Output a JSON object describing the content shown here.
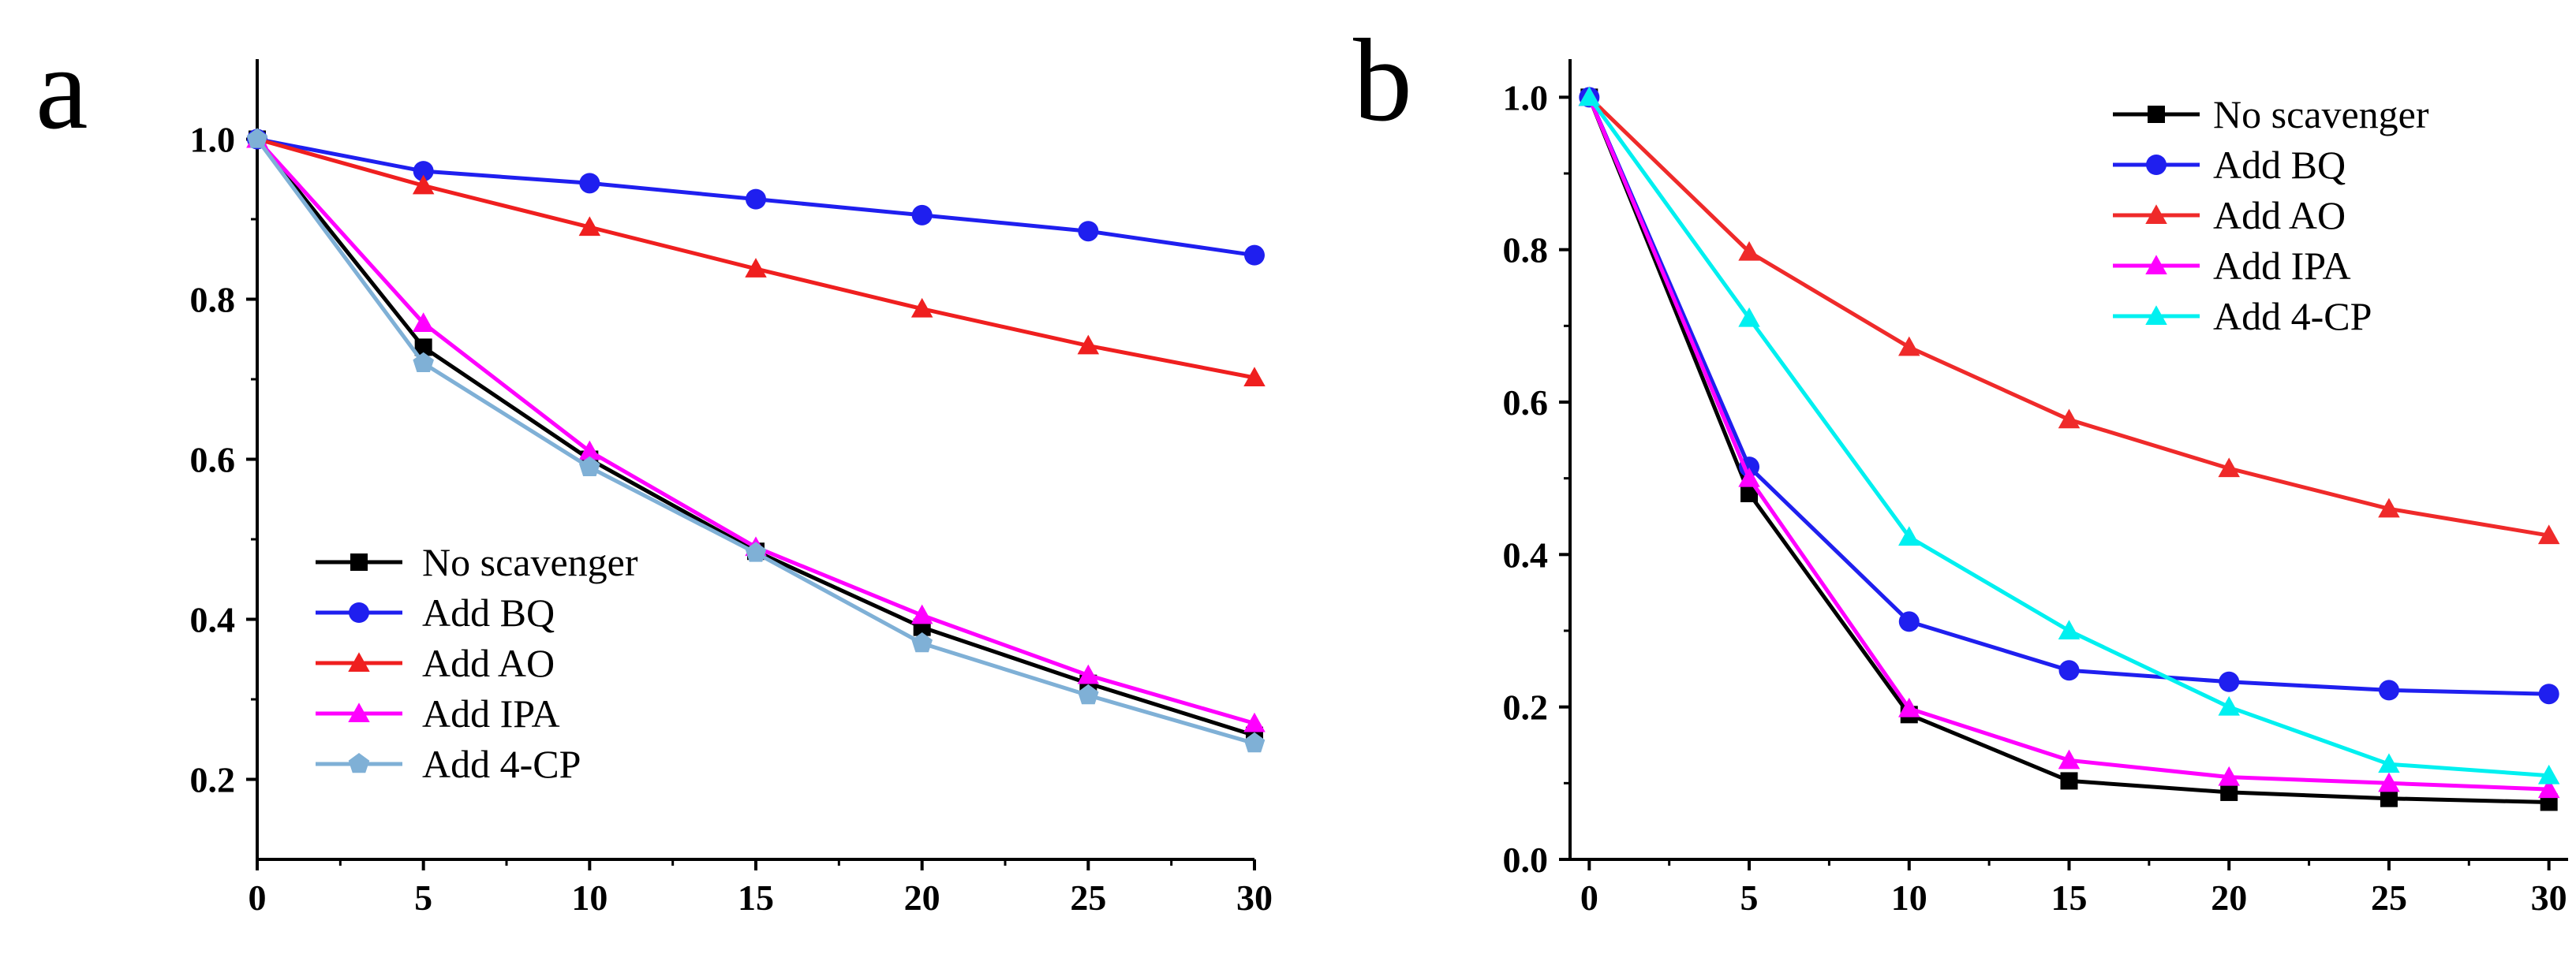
{
  "chart_data": [
    {
      "panel": "a",
      "type": "line",
      "title": "",
      "xlabel": "",
      "ylabel": "",
      "xlim": [
        0,
        30
      ],
      "ylim": [
        0.1,
        1.1
      ],
      "xticks": [
        0,
        5,
        10,
        15,
        20,
        25,
        30
      ],
      "yticks": [
        0.2,
        0.4,
        0.6,
        0.8,
        1.0
      ],
      "xtick_labels": [
        "0",
        "5",
        "10",
        "15",
        "20",
        "25",
        "30"
      ],
      "ytick_labels": [
        "0.2",
        "0.4",
        "0.6",
        "0.8",
        "1.0"
      ],
      "grid": false,
      "legend_position": "bottom-left",
      "x": [
        0,
        5,
        10,
        15,
        20,
        25,
        30
      ],
      "series": [
        {
          "name": "No scavenger",
          "color": "#000000",
          "marker": "square",
          "values": [
            1.0,
            0.74,
            0.6,
            0.485,
            0.39,
            0.32,
            0.255
          ]
        },
        {
          "name": "Add BQ",
          "color": "#1f1fef",
          "marker": "circle",
          "values": [
            1.0,
            0.96,
            0.945,
            0.925,
            0.905,
            0.885,
            0.855
          ]
        },
        {
          "name": "Add AO",
          "color": "#ef1f1f",
          "marker": "triangle",
          "values": [
            1.0,
            0.942,
            0.89,
            0.838,
            0.788,
            0.742,
            0.702
          ]
        },
        {
          "name": "Add IPA",
          "color": "#ff00ff",
          "marker": "triangle",
          "values": [
            1.0,
            0.77,
            0.61,
            0.49,
            0.405,
            0.33,
            0.27
          ]
        },
        {
          "name": "Add 4-CP",
          "color": "#7fb0d6",
          "marker": "pentagon",
          "values": [
            1.0,
            0.72,
            0.59,
            0.483,
            0.37,
            0.305,
            0.245
          ]
        }
      ]
    },
    {
      "panel": "b",
      "type": "line",
      "title": "",
      "xlabel": "",
      "ylabel": "",
      "xlim": [
        -0.6,
        30.6
      ],
      "ylim": [
        0.0,
        1.05
      ],
      "xticks": [
        0,
        5,
        10,
        15,
        20,
        25,
        30
      ],
      "yticks": [
        0.0,
        0.2,
        0.4,
        0.6,
        0.8,
        1.0
      ],
      "xtick_labels": [
        "0",
        "5",
        "10",
        "15",
        "20",
        "25",
        "30"
      ],
      "ytick_labels": [
        "0.0",
        "0.2",
        "0.4",
        "0.6",
        "0.8",
        "1.0"
      ],
      "grid": false,
      "legend_position": "top-right",
      "x": [
        0,
        5,
        10,
        15,
        20,
        25,
        30
      ],
      "series": [
        {
          "name": "No scavenger",
          "color": "#000000",
          "marker": "square",
          "values": [
            1.0,
            0.48,
            0.19,
            0.103,
            0.088,
            0.08,
            0.075
          ]
        },
        {
          "name": "Add BQ",
          "color": "#1f1fef",
          "marker": "circle",
          "values": [
            1.0,
            0.515,
            0.312,
            0.248,
            0.233,
            0.222,
            0.217
          ]
        },
        {
          "name": "Add AO",
          "color": "#ef2a2a",
          "marker": "triangle",
          "values": [
            1.0,
            0.797,
            0.672,
            0.577,
            0.513,
            0.46,
            0.425
          ]
        },
        {
          "name": "Add IPA",
          "color": "#ff00ff",
          "marker": "triangle",
          "values": [
            1.0,
            0.5,
            0.198,
            0.13,
            0.108,
            0.1,
            0.092
          ]
        },
        {
          "name": "Add 4-CP",
          "color": "#00f0f0",
          "marker": "triangle",
          "values": [
            1.0,
            0.71,
            0.423,
            0.3,
            0.2,
            0.125,
            0.11
          ]
        }
      ]
    }
  ]
}
